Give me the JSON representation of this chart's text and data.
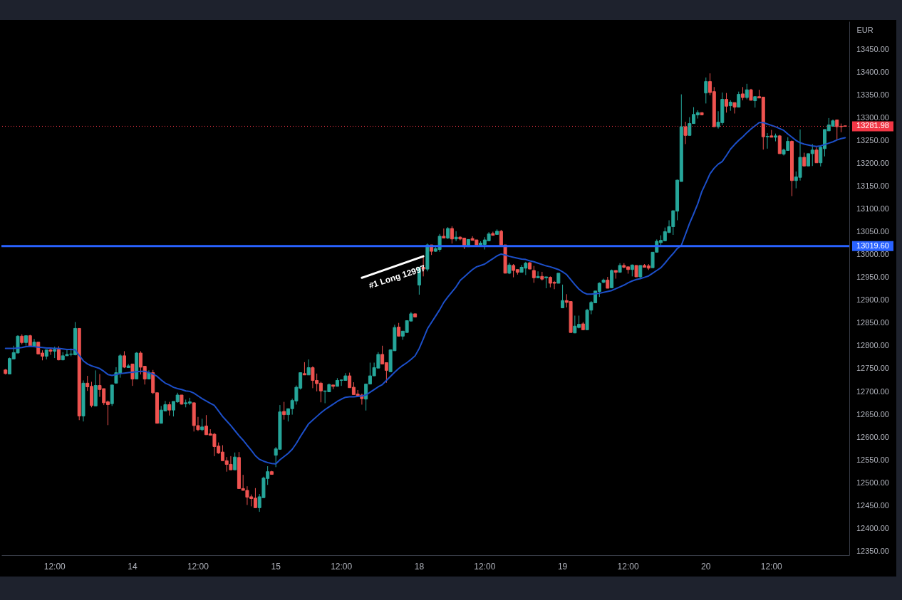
{
  "chart_data": {
    "type": "candlestick",
    "ylabel": "EUR",
    "categories": [
      null,
      null,
      null,
      null,
      null,
      null,
      null,
      null,
      null,
      null,
      null,
      null,
      "12:00",
      null,
      null,
      null,
      null,
      null,
      null,
      null,
      null,
      null,
      null,
      null,
      null,
      null,
      null,
      null,
      null,
      null,
      null,
      "14",
      null,
      null,
      null,
      null,
      null,
      null,
      null,
      null,
      null,
      null,
      null,
      null,
      null,
      null,
      null,
      "12:00",
      null,
      null,
      null,
      null,
      null,
      null,
      null,
      null,
      null,
      null,
      null,
      null,
      null,
      null,
      null,
      null,
      null,
      null,
      "15",
      null,
      null,
      null,
      null,
      null,
      null,
      null,
      null,
      null,
      null,
      null,
      null,
      null,
      null,
      null,
      "12:00",
      null,
      null,
      null,
      null,
      null,
      null,
      null,
      null,
      null,
      null,
      null,
      null,
      null,
      null,
      null,
      null,
      null,
      null,
      "18",
      null,
      null,
      null,
      null,
      null,
      null,
      null,
      null,
      null,
      null,
      null,
      null,
      null,
      null,
      null,
      "12:00",
      null,
      null,
      null,
      null,
      null,
      null,
      null,
      null,
      null,
      null,
      null,
      null,
      null,
      null,
      null,
      null,
      null,
      null,
      "19",
      null,
      null,
      null,
      null,
      null,
      null,
      null,
      null,
      null,
      null,
      null,
      null,
      null,
      null,
      null,
      "12:00",
      null,
      null,
      null,
      null,
      null,
      null,
      null,
      null,
      null,
      null,
      null,
      null,
      null,
      null,
      null,
      null,
      null,
      null,
      "20",
      null,
      null,
      null,
      null,
      null,
      null,
      null,
      null,
      null,
      null,
      null,
      null,
      null,
      null,
      null,
      "12:00",
      null,
      null,
      null,
      null,
      null,
      null,
      null,
      null,
      null,
      null,
      null,
      null,
      null,
      null,
      null,
      null,
      null,
      null
    ],
    "ohlc": [
      [
        12748,
        12750,
        12738,
        12740
      ],
      [
        12739,
        12775,
        12739,
        12773
      ],
      [
        12772,
        12801,
        12772,
        12786
      ],
      [
        12785,
        12824,
        12785,
        12822
      ],
      [
        12822,
        12826,
        12804,
        12808
      ],
      [
        12808,
        12823,
        12801,
        12823
      ],
      [
        12823,
        12825,
        12800,
        12800
      ],
      [
        12800,
        12816,
        12800,
        12809
      ],
      [
        12809,
        12809,
        12783,
        12783
      ],
      [
        12785,
        12791,
        12769,
        12778
      ],
      [
        12778,
        12792,
        12771,
        12792
      ],
      [
        12792,
        12795,
        12781,
        12789
      ],
      [
        12789,
        12799,
        12774,
        12793
      ],
      [
        12793,
        12800,
        12769,
        12770
      ],
      [
        12770,
        12787,
        12769,
        12779
      ],
      [
        12779,
        12792,
        12779,
        12782
      ],
      [
        12782,
        12795,
        12778,
        12783
      ],
      [
        12781,
        12853,
        12780,
        12839
      ],
      [
        12839,
        12839,
        12638,
        12647
      ],
      [
        12647,
        12725,
        12635,
        12719
      ],
      [
        12719,
        12735,
        12702,
        12711
      ],
      [
        12712,
        12722,
        12666,
        12670
      ],
      [
        12669,
        12747,
        12669,
        12714
      ],
      [
        12714,
        12739,
        12689,
        12705
      ],
      [
        12707,
        12707,
        12671,
        12676
      ],
      [
        12678,
        12681,
        12627,
        12672
      ],
      [
        12674,
        12715,
        12669,
        12715
      ],
      [
        12719,
        12754,
        12719,
        12742
      ],
      [
        12740,
        12783,
        12731,
        12779
      ],
      [
        12779,
        12789,
        12752,
        12754
      ],
      [
        12753,
        12761,
        12753,
        12757
      ],
      [
        12761,
        12761,
        12713,
        12728
      ],
      [
        12728,
        12787,
        12728,
        12785
      ],
      [
        12785,
        12789,
        12738,
        12754
      ],
      [
        12756,
        12756,
        12716,
        12728
      ],
      [
        12728,
        12747,
        12728,
        12742
      ],
      [
        12742,
        12748,
        12695,
        12698
      ],
      [
        12698,
        12698,
        12631,
        12631
      ],
      [
        12631,
        12669,
        12631,
        12660
      ],
      [
        12658,
        12680,
        12658,
        12672
      ],
      [
        12672,
        12678,
        12648,
        12660
      ],
      [
        12660,
        12679,
        12646,
        12679
      ],
      [
        12678,
        12698,
        12676,
        12693
      ],
      [
        12693,
        12693,
        12672,
        12673
      ],
      [
        12674,
        12683,
        12666,
        12676
      ],
      [
        12675,
        12687,
        12671,
        12678
      ],
      [
        12676,
        12676,
        12613,
        12626
      ],
      [
        12626,
        12645,
        12614,
        12617
      ],
      [
        12617,
        12641,
        12614,
        12623
      ],
      [
        12625,
        12649,
        12606,
        12606
      ],
      [
        12608,
        12618,
        12605,
        12605
      ],
      [
        12607,
        12610,
        12559,
        12580
      ],
      [
        12581,
        12589,
        12564,
        12566
      ],
      [
        12568,
        12583,
        12549,
        12549
      ],
      [
        12549,
        12557,
        12525,
        12541
      ],
      [
        12541,
        12559,
        12529,
        12529
      ],
      [
        12529,
        12567,
        12529,
        12557
      ],
      [
        12556,
        12568,
        12488,
        12488
      ],
      [
        12488,
        12518,
        12484,
        12484
      ],
      [
        12484,
        12493,
        12452,
        12469
      ],
      [
        12470,
        12475,
        12449,
        12466
      ],
      [
        12467,
        12489,
        12446,
        12446
      ],
      [
        12446,
        12476,
        12437,
        12470
      ],
      [
        12468,
        12514,
        12468,
        12511
      ],
      [
        12510,
        12537,
        12496,
        12525
      ],
      [
        12525,
        12527,
        12519,
        12519
      ],
      [
        12561,
        12579,
        12535,
        12575
      ],
      [
        12574,
        12671,
        12574,
        12656
      ],
      [
        12657,
        12678,
        12639,
        12650
      ],
      [
        12650,
        12663,
        12635,
        12663
      ],
      [
        12663,
        12685,
        12650,
        12681
      ],
      [
        12680,
        12714,
        12672,
        12710
      ],
      [
        12708,
        12742,
        12705,
        12742
      ],
      [
        12740,
        12765,
        12737,
        12737
      ],
      [
        12737,
        12771,
        12737,
        12753
      ],
      [
        12753,
        12756,
        12708,
        12725
      ],
      [
        12725,
        12740,
        12701,
        12718
      ],
      [
        12719,
        12722,
        12677,
        12702
      ],
      [
        12701,
        12702,
        12675,
        12702
      ],
      [
        12700,
        12718,
        12700,
        12716
      ],
      [
        12715,
        12715,
        12706,
        12712
      ],
      [
        12712,
        12730,
        12712,
        12725
      ],
      [
        12725,
        12727,
        12713,
        12726
      ],
      [
        12725,
        12741,
        12725,
        12735
      ],
      [
        12735,
        12742,
        12709,
        12709
      ],
      [
        12710,
        12721,
        12694,
        12694
      ],
      [
        12695,
        12704,
        12691,
        12691
      ],
      [
        12693,
        12696,
        12672,
        12685
      ],
      [
        12684,
        12717,
        12659,
        12717
      ],
      [
        12717,
        12764,
        12717,
        12735
      ],
      [
        12735,
        12764,
        12735,
        12753
      ],
      [
        12752,
        12787,
        12752,
        12782
      ],
      [
        12782,
        12801,
        12761,
        12761
      ],
      [
        12764,
        12764,
        12720,
        12747
      ],
      [
        12744,
        12793,
        12744,
        12792
      ],
      [
        12790,
        12847,
        12790,
        12841
      ],
      [
        12842,
        12851,
        12822,
        12822
      ],
      [
        12822,
        12833,
        12814,
        12833
      ],
      [
        12830,
        12856,
        12830,
        12856
      ],
      [
        12855,
        12875,
        12855,
        12871
      ],
      [
        12871,
        12871,
        12864,
        12864
      ],
      [
        12934,
        12973,
        12913,
        12973
      ],
      [
        12973,
        12999,
        12953,
        12969
      ],
      [
        12969,
        13025,
        12964,
        13022
      ],
      [
        13022,
        13022,
        13000,
        13008
      ],
      [
        13008,
        13018,
        13007,
        13014
      ],
      [
        13012,
        13046,
        13007,
        13041
      ],
      [
        13041,
        13058,
        13037,
        13037
      ],
      [
        13037,
        13061,
        13035,
        13058
      ],
      [
        13058,
        13063,
        13025,
        13035
      ],
      [
        13035,
        13052,
        13030,
        13039
      ],
      [
        13039,
        13041,
        13032,
        13035
      ],
      [
        13037,
        13037,
        13013,
        13018
      ],
      [
        13018,
        13034,
        13018,
        13034
      ],
      [
        13036,
        13041,
        13032,
        13032
      ],
      [
        13033,
        13033,
        13022,
        13022
      ],
      [
        13022,
        13030,
        13020,
        13026
      ],
      [
        13023,
        13039,
        13012,
        13033
      ],
      [
        13031,
        13050,
        13031,
        13046
      ],
      [
        13047,
        13051,
        13043,
        13043
      ],
      [
        13045,
        13056,
        13045,
        13052
      ],
      [
        13052,
        13055,
        13021,
        13021
      ],
      [
        13022,
        13022,
        12960,
        12960
      ],
      [
        12960,
        12983,
        12958,
        12978
      ],
      [
        12977,
        12980,
        12951,
        12966
      ],
      [
        12968,
        12968,
        12957,
        12962
      ],
      [
        12962,
        12978,
        12962,
        12973
      ],
      [
        12971,
        12985,
        12956,
        12982
      ],
      [
        12983,
        12984,
        12969,
        12969
      ],
      [
        12966,
        12976,
        12939,
        12950
      ],
      [
        12950,
        12964,
        12950,
        12953
      ],
      [
        12953,
        12963,
        12944,
        12947
      ],
      [
        12950,
        12952,
        12927,
        12952
      ],
      [
        12951,
        12953,
        12929,
        12938
      ],
      [
        12940,
        12943,
        12925,
        12938
      ],
      [
        12938,
        12960,
        12938,
        12960
      ],
      [
        12884,
        12935,
        12884,
        12900
      ],
      [
        12900,
        12914,
        12885,
        12896
      ],
      [
        12898,
        12898,
        12830,
        12830
      ],
      [
        12829,
        12867,
        12829,
        12844
      ],
      [
        12841,
        12867,
        12839,
        12848
      ],
      [
        12849,
        12853,
        12836,
        12836
      ],
      [
        12836,
        12882,
        12836,
        12879
      ],
      [
        12879,
        12899,
        12870,
        12896
      ],
      [
        12895,
        12921,
        12895,
        12921
      ],
      [
        12920,
        12940,
        12908,
        12938
      ],
      [
        12940,
        12948,
        12938,
        12945
      ],
      [
        12945,
        12952,
        12927,
        12927
      ],
      [
        12928,
        12968,
        12928,
        12966
      ],
      [
        12966,
        12966,
        12948,
        12962
      ],
      [
        12962,
        12982,
        12962,
        12977
      ],
      [
        12977,
        12982,
        12971,
        12973
      ],
      [
        12974,
        12974,
        12959,
        12968
      ],
      [
        12968,
        12979,
        12953,
        12978
      ],
      [
        12977,
        12977,
        12952,
        12952
      ],
      [
        12952,
        12977,
        12949,
        12977
      ],
      [
        12977,
        12980,
        12973,
        12973
      ],
      [
        12976,
        12980,
        12967,
        12971
      ],
      [
        12972,
        13006,
        12972,
        13006
      ],
      [
        13006,
        13034,
        13006,
        13030
      ],
      [
        13027,
        13043,
        13021,
        13032
      ],
      [
        13031,
        13060,
        13031,
        13051
      ],
      [
        13049,
        13076,
        13049,
        13062
      ],
      [
        13062,
        13097,
        13044,
        13097
      ],
      [
        13096,
        13165,
        13076,
        13164
      ],
      [
        13161,
        13352,
        13161,
        13281
      ],
      [
        13281,
        13292,
        13243,
        13262
      ],
      [
        13262,
        13302,
        13262,
        13288
      ],
      [
        13288,
        13324,
        13288,
        13308
      ],
      [
        13307,
        13317,
        13299,
        13312
      ],
      [
        13312,
        13312,
        13307,
        13307
      ],
      [
        13355,
        13389,
        13332,
        13380
      ],
      [
        13380,
        13398,
        13350,
        13356
      ],
      [
        13358,
        13368,
        13281,
        13281
      ],
      [
        13281,
        13315,
        13277,
        13291
      ],
      [
        13290,
        13356,
        13285,
        13341
      ],
      [
        13341,
        13355,
        13312,
        13326
      ],
      [
        13327,
        13339,
        13316,
        13335
      ],
      [
        13334,
        13334,
        13310,
        13324
      ],
      [
        13324,
        13358,
        13324,
        13352
      ],
      [
        13353,
        13368,
        13339,
        13345
      ],
      [
        13345,
        13375,
        13341,
        13362
      ],
      [
        13362,
        13364,
        13339,
        13339
      ],
      [
        13338,
        13347,
        13323,
        13347
      ],
      [
        13347,
        13362,
        13344,
        13344
      ],
      [
        13346,
        13346,
        13231,
        13259
      ],
      [
        13259,
        13267,
        13233,
        13260
      ],
      [
        13261,
        13274,
        13258,
        13258
      ],
      [
        13258,
        13266,
        13249,
        13261
      ],
      [
        13261,
        13263,
        13222,
        13222
      ],
      [
        13221,
        13233,
        13218,
        13230
      ],
      [
        13229,
        13258,
        13229,
        13249
      ],
      [
        13249,
        13251,
        13129,
        13163
      ],
      [
        13163,
        13183,
        13146,
        13171
      ],
      [
        13170,
        13275,
        13163,
        13214
      ],
      [
        13214,
        13224,
        13194,
        13195
      ],
      [
        13195,
        13222,
        13195,
        13222
      ],
      [
        13222,
        13243,
        13195,
        13230
      ],
      [
        13230,
        13236,
        13202,
        13202
      ],
      [
        13202,
        13239,
        13194,
        13236
      ],
      [
        13233,
        13275,
        13216,
        13275
      ],
      [
        13272,
        13300,
        13272,
        13285
      ],
      [
        13282,
        13297,
        13282,
        13294
      ],
      [
        13296,
        13296,
        13253,
        13281
      ],
      [
        13282,
        13288,
        13269,
        13281
      ],
      [
        13283,
        13283,
        13281,
        13281.98
      ]
    ],
    "colors": [
      "#ef5350",
      "#26a69a",
      "#26a69a",
      "#26a69a",
      "#ef5350",
      "#26a69a",
      "#ef5350",
      "#26a69a",
      "#ef5350",
      "#ef5350",
      "#26a69a",
      "#ef5350",
      "#26a69a",
      "#ef5350",
      "#26a69a",
      "#26a69a",
      "#26a69a",
      "#26a69a",
      "#ef5350",
      "#26a69a",
      "#ef5350",
      "#ef5350",
      "#26a69a",
      "#ef5350",
      "#ef5350",
      "#ef5350",
      "#26a69a",
      "#26a69a",
      "#26a69a",
      "#ef5350",
      "#26a69a",
      "#ef5350",
      "#26a69a",
      "#ef5350",
      "#ef5350",
      "#26a69a",
      "#ef5350",
      "#ef5350",
      "#26a69a",
      "#26a69a",
      "#ef5350",
      "#26a69a",
      "#26a69a",
      "#ef5350",
      "#26a69a",
      "#26a69a",
      "#ef5350",
      "#ef5350",
      "#26a69a",
      "#ef5350",
      "#ef5350",
      "#ef5350",
      "#ef5350",
      "#ef5350",
      "#ef5350",
      "#ef5350",
      "#26a69a",
      "#ef5350",
      "#ef5350",
      "#ef5350",
      "#ef5350",
      "#ef5350",
      "#26a69a",
      "#26a69a",
      "#26a69a",
      "#ef5350",
      "#26a69a",
      "#26a69a",
      "#ef5350",
      "#26a69a",
      "#26a69a",
      "#26a69a",
      "#26a69a",
      "#ef5350",
      "#26a69a",
      "#ef5350",
      "#ef5350",
      "#ef5350",
      "#26a69a",
      "#26a69a",
      "#ef5350",
      "#26a69a",
      "#26a69a",
      "#26a69a",
      "#ef5350",
      "#ef5350",
      "#ef5350",
      "#ef5350",
      "#26a69a",
      "#26a69a",
      "#26a69a",
      "#26a69a",
      "#ef5350",
      "#ef5350",
      "#26a69a",
      "#26a69a",
      "#ef5350",
      "#26a69a",
      "#26a69a",
      "#26a69a",
      "#ef5350",
      "#26a69a",
      "#ef5350",
      "#26a69a",
      "#ef5350",
      "#26a69a",
      "#26a69a",
      "#ef5350",
      "#26a69a",
      "#ef5350",
      "#26a69a",
      "#ef5350",
      "#ef5350",
      "#26a69a",
      "#ef5350",
      "#ef5350",
      "#26a69a",
      "#26a69a",
      "#26a69a",
      "#ef5350",
      "#26a69a",
      "#ef5350",
      "#ef5350",
      "#26a69a",
      "#ef5350",
      "#ef5350",
      "#26a69a",
      "#26a69a",
      "#ef5350",
      "#ef5350",
      "#26a69a",
      "#ef5350",
      "#26a69a",
      "#ef5350",
      "#ef5350",
      "#26a69a",
      "#26a69a",
      "#ef5350",
      "#ef5350",
      "#26a69a",
      "#26a69a",
      "#ef5350",
      "#26a69a",
      "#26a69a",
      "#26a69a",
      "#26a69a",
      "#26a69a",
      "#ef5350",
      "#26a69a",
      "#ef5350",
      "#26a69a",
      "#ef5350",
      "#ef5350",
      "#26a69a",
      "#ef5350",
      "#26a69a",
      "#ef5350",
      "#ef5350",
      "#26a69a",
      "#26a69a",
      "#26a69a",
      "#26a69a",
      "#26a69a",
      "#26a69a",
      "#26a69a",
      "#26a69a",
      "#ef5350",
      "#26a69a",
      "#26a69a",
      "#26a69a",
      "#ef5350",
      "#26a69a",
      "#ef5350",
      "#ef5350",
      "#26a69a",
      "#26a69a",
      "#ef5350",
      "#26a69a",
      "#ef5350",
      "#26a69a",
      "#ef5350",
      "#26a69a",
      "#ef5350",
      "#26a69a",
      "#ef5350",
      "#ef5350",
      "#26a69a",
      "#ef5350",
      "#26a69a",
      "#ef5350",
      "#26a69a",
      "#26a69a",
      "#ef5350",
      "#26a69a",
      "#26a69a",
      "#ef5350",
      "#26a69a",
      "#26a69a",
      "#ef5350",
      "#26a69a",
      "#26a69a",
      "#26a69a",
      "#26a69a",
      "#ef5350",
      "#ef5350",
      "#ef5350"
    ],
    "series": [
      {
        "type": "line",
        "color": "#1c4fc9",
        "values": [
          12795,
          12795,
          12795,
          12796,
          12797,
          12799,
          12800,
          12799,
          12798,
          12797,
          12796,
          12796,
          12795,
          12795,
          12794,
          12793,
          12793,
          12792,
          12780,
          12768,
          12761,
          12757,
          12754,
          12751,
          12745,
          12738,
          12736,
          12738,
          12740,
          12741,
          12742,
          12743,
          12744,
          12745,
          12745,
          12742,
          12739,
          12734,
          12726,
          12719,
          12715,
          12710,
          12707,
          12705,
          12702,
          12701,
          12697,
          12691,
          12685,
          12680,
          12675,
          12670,
          12658,
          12646,
          12636,
          12626,
          12615,
          12604,
          12594,
          12583,
          12572,
          12560,
          12552,
          12548,
          12545,
          12543,
          12542,
          12551,
          12558,
          12565,
          12574,
          12587,
          12602,
          12616,
          12630,
          12638,
          12646,
          12654,
          12661,
          12667,
          12673,
          12679,
          12684,
          12688,
          12689,
          12689,
          12690,
          12691,
          12693,
          12699,
          12705,
          12711,
          12716,
          12725,
          12734,
          12743,
          12751,
          12758,
          12764,
          12771,
          12779,
          12795,
          12816,
          12838,
          12852,
          12866,
          12880,
          12896,
          12908,
          12919,
          12930,
          12944,
          12952,
          12960,
          12968,
          12974,
          12977,
          12980,
          12986,
          12992,
          12998,
          13002,
          13000,
          12997,
          12995,
          12993,
          12991,
          12990,
          12987,
          12985,
          12982,
          12979,
          12976,
          12974,
          12971,
          12968,
          12963,
          12957,
          12946,
          12935,
          12925,
          12918,
          12914,
          12914,
          12915,
          12916,
          12918,
          12920,
          12922,
          12926,
          12930,
          12934,
          12939,
          12943,
          12946,
          12948,
          12951,
          12954,
          12960,
          12966,
          12972,
          12982,
          12993,
          13003,
          13014,
          13021,
          13045,
          13069,
          13090,
          13112,
          13139,
          13158,
          13178,
          13190,
          13199,
          13205,
          13218,
          13232,
          13242,
          13251,
          13259,
          13268,
          13276,
          13283,
          13290,
          13290,
          13287,
          13284,
          13281,
          13277,
          13273,
          13265,
          13258,
          13251,
          13246,
          13243,
          13241,
          13239,
          13238,
          13239,
          13242,
          13245,
          13248,
          13252,
          13255,
          13257
        ]
      },
      {
        "type": "line",
        "color": "#ffffff",
        "values": [
          null,
          null,
          null,
          null,
          null,
          null,
          null,
          null,
          null,
          null,
          null,
          null,
          null,
          null,
          null,
          null,
          null,
          null,
          null,
          null,
          null,
          null,
          null,
          null,
          null,
          null,
          null,
          null,
          null,
          null,
          null,
          null,
          null,
          null,
          null,
          null,
          null,
          null,
          null,
          null,
          null,
          null,
          null,
          null,
          null,
          null,
          null,
          null,
          null,
          null,
          null,
          null,
          null,
          null,
          null,
          null,
          null,
          null,
          null,
          null,
          null,
          null,
          null,
          null,
          null,
          null,
          null,
          null,
          null,
          null,
          null,
          null,
          null,
          null,
          null,
          null,
          null,
          null,
          null,
          null,
          null,
          null,
          null,
          null,
          null,
          null,
          null,
          12950,
          null,
          null,
          null,
          null,
          null,
          null,
          null,
          null,
          null,
          null,
          null,
          null,
          null,
          null,
          12997,
          null,
          null,
          null,
          null,
          null,
          null,
          null,
          null,
          null,
          null,
          null,
          null,
          null,
          null,
          null,
          null,
          null,
          null,
          null,
          null,
          null,
          null,
          null,
          null,
          null,
          null,
          null,
          null,
          null,
          null,
          null,
          null,
          null,
          null,
          null,
          null,
          null,
          null,
          null,
          null,
          null,
          null,
          null,
          null,
          null,
          null,
          null,
          null,
          null,
          null,
          null,
          null,
          null,
          null,
          null,
          null,
          null,
          null,
          null,
          null,
          null,
          null,
          null,
          null,
          null,
          null,
          null,
          null,
          null,
          null,
          null,
          null,
          null,
          null,
          null,
          null,
          null,
          null,
          null,
          null,
          null,
          null,
          null,
          null,
          null,
          null,
          null,
          null,
          null,
          null,
          null,
          null,
          null,
          null,
          null,
          null,
          null,
          null,
          null,
          null,
          null,
          null,
          null
        ]
      }
    ],
    "ylim": [
      12342,
      13512
    ],
    "yticks": [
      {
        "value": 12350,
        "label": "12350.00"
      },
      {
        "value": 12400,
        "label": "12400.00"
      },
      {
        "value": 12450,
        "label": "12450.00"
      },
      {
        "value": 12500,
        "label": "12500.00"
      },
      {
        "value": 12550,
        "label": "12550.00"
      },
      {
        "value": 12600,
        "label": "12600.00"
      },
      {
        "value": 12650,
        "label": "12650.00"
      },
      {
        "value": 12700,
        "label": "12700.00"
      },
      {
        "value": 12750,
        "label": "12750.00"
      },
      {
        "value": 12800,
        "label": "12800.00"
      },
      {
        "value": 12850,
        "label": "12850.00"
      },
      {
        "value": 12900,
        "label": "12900.00"
      },
      {
        "value": 12950,
        "label": "12950.00"
      },
      {
        "value": 13000,
        "label": "13000.00"
      },
      {
        "value": 13050,
        "label": "13050.00"
      },
      {
        "value": 13100,
        "label": "13100.00"
      },
      {
        "value": 13150,
        "label": "13150.00"
      },
      {
        "value": 13200,
        "label": "13200.00"
      },
      {
        "value": 13250,
        "label": "13250.00"
      },
      {
        "value": 13300,
        "label": "13300.00"
      },
      {
        "value": 13350,
        "label": "13350.00"
      },
      {
        "value": 13400,
        "label": "13400.00"
      },
      {
        "value": 13450,
        "label": "13450.00"
      }
    ],
    "ref_lines": [
      {
        "axis": "y",
        "value": 13019.6,
        "label": "13019.60",
        "color": "#2962ff",
        "line_style": "solid"
      },
      {
        "axis": "y",
        "value": 13281.98,
        "label": "13281.98",
        "color": "#f23645",
        "line_style": "dotted"
      }
    ],
    "annotations": [
      "#1 Long 12997"
    ],
    "grid": false
  }
}
